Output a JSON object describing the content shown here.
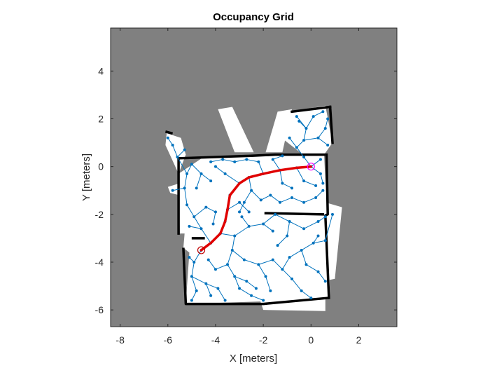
{
  "chart_data": {
    "type": "occupancy-grid",
    "title": "Occupancy Grid",
    "xlabel": "X [meters]",
    "ylabel": "Y [meters]",
    "xlim": [
      -8.4,
      3.6
    ],
    "ylim": [
      -6.7,
      5.8
    ],
    "xticks": [
      -8,
      -6,
      -4,
      -2,
      0,
      2
    ],
    "yticks": [
      -6,
      -4,
      -2,
      0,
      2,
      4
    ],
    "grid": false,
    "colors": {
      "unknown": "#808080",
      "free": "#ffffff",
      "occupied": "#000000",
      "tree": "#0072bd",
      "path": "#e00000",
      "start_marker": "#c00000",
      "goal_marker": "#ff00ff",
      "axes": "#262626"
    },
    "start": [
      -4.6,
      -3.5
    ],
    "goal": [
      0.0,
      0.0
    ],
    "path": [
      [
        -4.6,
        -3.5
      ],
      [
        -4.2,
        -3.2
      ],
      [
        -3.8,
        -2.8
      ],
      [
        -3.6,
        -2.3
      ],
      [
        -3.5,
        -1.8
      ],
      [
        -3.4,
        -1.2
      ],
      [
        -3.0,
        -0.7
      ],
      [
        -2.6,
        -0.45
      ],
      [
        -2.0,
        -0.3
      ],
      [
        -1.3,
        -0.15
      ],
      [
        -0.6,
        -0.05
      ],
      [
        0.0,
        0.0
      ]
    ],
    "free_space": [
      [
        [
          -5.55,
          -0.3
        ],
        [
          -5.5,
          -2.8
        ],
        [
          -5.3,
          -2.8
        ],
        [
          -5.35,
          -3.4
        ],
        [
          -5.1,
          -3.6
        ],
        [
          -5.25,
          -5.75
        ],
        [
          0.8,
          -5.55
        ],
        [
          0.7,
          -2.0
        ],
        [
          0.6,
          -0.6
        ],
        [
          0.55,
          0.5
        ],
        [
          -2.5,
          0.5
        ],
        [
          -4.5,
          0.4
        ]
      ],
      [
        [
          -6.05,
          1.4
        ],
        [
          -5.45,
          1.2
        ],
        [
          -5.25,
          0.5
        ],
        [
          -5.55,
          -0.3
        ],
        [
          -6.1,
          0.9
        ]
      ],
      [
        [
          -1.1,
          1.1
        ],
        [
          -0.9,
          2.3
        ],
        [
          0.6,
          2.55
        ],
        [
          0.9,
          1.0
        ],
        [
          0.55,
          0.5
        ],
        [
          -0.4,
          0.55
        ]
      ],
      [
        [
          -6.0,
          -0.85
        ],
        [
          -5.5,
          -0.7
        ],
        [
          -5.5,
          -1.2
        ],
        [
          -5.9,
          -1.1
        ]
      ],
      [
        [
          -3.9,
          2.4
        ],
        [
          -3.3,
          2.5
        ],
        [
          -2.4,
          0.6
        ],
        [
          -3.2,
          0.6
        ]
      ],
      [
        [
          -1.4,
          2.3
        ],
        [
          -0.8,
          2.4
        ],
        [
          -1.2,
          0.6
        ],
        [
          -1.9,
          0.6
        ]
      ],
      [
        [
          0.6,
          -1.5
        ],
        [
          1.3,
          -1.7
        ],
        [
          1.0,
          -4.7
        ],
        [
          0.5,
          -4.8
        ]
      ],
      [
        [
          -2.2,
          -5.4
        ],
        [
          0.6,
          -5.4
        ],
        [
          0.6,
          -6.05
        ],
        [
          -2.0,
          -6.0
        ]
      ]
    ],
    "walls": [
      [
        [
          -5.45,
          0.35
        ],
        [
          -2.5,
          0.45
        ],
        [
          -1.5,
          0.5
        ],
        [
          0.55,
          0.5
        ]
      ],
      [
        [
          -5.55,
          0.35
        ],
        [
          -5.55,
          -2.8
        ]
      ],
      [
        [
          -5.35,
          -3.45
        ],
        [
          -5.25,
          -5.75
        ],
        [
          -2.0,
          -5.75
        ],
        [
          0.7,
          -5.5
        ]
      ],
      [
        [
          0.65,
          0.5
        ],
        [
          0.7,
          -2.0
        ],
        [
          0.6,
          -2.05
        ],
        [
          0.75,
          -5.5
        ]
      ],
      [
        [
          -0.8,
          2.3
        ],
        [
          0.8,
          2.5
        ]
      ],
      [
        [
          0.8,
          2.5
        ],
        [
          0.9,
          1.0
        ]
      ],
      [
        [
          -6.05,
          1.45
        ],
        [
          -5.85,
          1.4
        ]
      ],
      [
        [
          -4.95,
          -3.0
        ],
        [
          -4.5,
          -3.0
        ]
      ],
      [
        [
          -1.9,
          -1.95
        ],
        [
          0.5,
          -2.0
        ]
      ]
    ],
    "tree_edges": [
      [
        [
          -4.6,
          -3.5
        ],
        [
          -4.2,
          -3.2
        ]
      ],
      [
        [
          -4.2,
          -3.2
        ],
        [
          -3.8,
          -2.8
        ]
      ],
      [
        [
          -3.8,
          -2.8
        ],
        [
          -3.6,
          -2.3
        ]
      ],
      [
        [
          -3.6,
          -2.3
        ],
        [
          -3.5,
          -1.8
        ]
      ],
      [
        [
          -3.5,
          -1.8
        ],
        [
          -3.4,
          -1.2
        ]
      ],
      [
        [
          -3.4,
          -1.2
        ],
        [
          -3.0,
          -0.7
        ]
      ],
      [
        [
          -3.0,
          -0.7
        ],
        [
          -2.6,
          -0.45
        ]
      ],
      [
        [
          -2.6,
          -0.45
        ],
        [
          -2.0,
          -0.3
        ]
      ],
      [
        [
          -2.0,
          -0.3
        ],
        [
          -1.3,
          -0.15
        ]
      ],
      [
        [
          -1.3,
          -0.15
        ],
        [
          -0.6,
          -0.05
        ]
      ],
      [
        [
          -0.6,
          -0.05
        ],
        [
          0.0,
          0.0
        ]
      ],
      [
        [
          -4.6,
          -3.5
        ],
        [
          -4.9,
          -4.0
        ]
      ],
      [
        [
          -4.9,
          -4.0
        ],
        [
          -5.0,
          -4.6
        ]
      ],
      [
        [
          -5.0,
          -4.6
        ],
        [
          -4.8,
          -5.2
        ]
      ],
      [
        [
          -4.9,
          -4.0
        ],
        [
          -5.1,
          -3.8
        ]
      ],
      [
        [
          -5.0,
          -4.6
        ],
        [
          -4.4,
          -4.9
        ]
      ],
      [
        [
          -4.4,
          -4.9
        ],
        [
          -4.2,
          -5.4
        ]
      ],
      [
        [
          -4.8,
          -5.2
        ],
        [
          -5.0,
          -5.6
        ]
      ],
      [
        [
          -4.4,
          -4.9
        ],
        [
          -3.9,
          -5.1
        ]
      ],
      [
        [
          -3.9,
          -5.1
        ],
        [
          -3.6,
          -5.6
        ]
      ],
      [
        [
          -4.2,
          -3.2
        ],
        [
          -4.6,
          -2.6
        ]
      ],
      [
        [
          -4.6,
          -2.6
        ],
        [
          -4.9,
          -2.1
        ]
      ],
      [
        [
          -4.9,
          -2.1
        ],
        [
          -5.2,
          -1.6
        ]
      ],
      [
        [
          -5.2,
          -1.6
        ],
        [
          -5.3,
          -0.9
        ]
      ],
      [
        [
          -5.3,
          -0.9
        ],
        [
          -5.2,
          -0.3
        ]
      ],
      [
        [
          -5.2,
          -0.3
        ],
        [
          -5.0,
          0.1
        ]
      ],
      [
        [
          -4.9,
          -2.1
        ],
        [
          -4.4,
          -1.7
        ]
      ],
      [
        [
          -4.4,
          -1.7
        ],
        [
          -4.0,
          -1.9
        ]
      ],
      [
        [
          -4.6,
          -2.6
        ],
        [
          -5.1,
          -2.5
        ]
      ],
      [
        [
          -5.3,
          -0.9
        ],
        [
          -5.8,
          -1.0
        ]
      ],
      [
        [
          -5.2,
          -0.3
        ],
        [
          -5.6,
          0.4
        ]
      ],
      [
        [
          -5.6,
          0.4
        ],
        [
          -5.8,
          0.9
        ]
      ],
      [
        [
          -5.8,
          0.9
        ],
        [
          -6.0,
          1.2
        ]
      ],
      [
        [
          -5.6,
          0.4
        ],
        [
          -5.3,
          0.7
        ]
      ],
      [
        [
          -5.0,
          0.1
        ],
        [
          -4.6,
          -0.3
        ]
      ],
      [
        [
          -4.6,
          -0.3
        ],
        [
          -4.2,
          -0.6
        ]
      ],
      [
        [
          -4.6,
          -0.3
        ],
        [
          -4.8,
          -0.9
        ]
      ],
      [
        [
          -3.8,
          -2.8
        ],
        [
          -3.2,
          -2.9
        ]
      ],
      [
        [
          -3.2,
          -2.9
        ],
        [
          -2.6,
          -2.5
        ]
      ],
      [
        [
          -2.6,
          -2.5
        ],
        [
          -2.0,
          -2.4
        ]
      ],
      [
        [
          -2.0,
          -2.4
        ],
        [
          -1.6,
          -2.7
        ]
      ],
      [
        [
          -2.6,
          -2.5
        ],
        [
          -2.9,
          -2.1
        ]
      ],
      [
        [
          -3.2,
          -2.9
        ],
        [
          -3.3,
          -3.5
        ]
      ],
      [
        [
          -3.3,
          -3.5
        ],
        [
          -3.5,
          -4.1
        ]
      ],
      [
        [
          -3.5,
          -4.1
        ],
        [
          -3.2,
          -4.6
        ]
      ],
      [
        [
          -3.2,
          -4.6
        ],
        [
          -3.0,
          -5.1
        ]
      ],
      [
        [
          -3.0,
          -5.1
        ],
        [
          -2.5,
          -5.4
        ]
      ],
      [
        [
          -3.3,
          -3.5
        ],
        [
          -2.8,
          -3.9
        ]
      ],
      [
        [
          -2.8,
          -3.9
        ],
        [
          -2.2,
          -4.1
        ]
      ],
      [
        [
          -2.2,
          -4.1
        ],
        [
          -1.9,
          -4.6
        ]
      ],
      [
        [
          -1.9,
          -4.6
        ],
        [
          -1.7,
          -5.2
        ]
      ],
      [
        [
          -2.2,
          -4.1
        ],
        [
          -1.6,
          -3.9
        ]
      ],
      [
        [
          -1.6,
          -3.9
        ],
        [
          -1.2,
          -4.3
        ]
      ],
      [
        [
          -1.2,
          -4.3
        ],
        [
          -0.8,
          -4.7
        ]
      ],
      [
        [
          -0.8,
          -4.7
        ],
        [
          -0.4,
          -5.2
        ]
      ],
      [
        [
          -0.4,
          -5.2
        ],
        [
          0.0,
          -5.5
        ]
      ],
      [
        [
          -1.2,
          -4.3
        ],
        [
          -0.9,
          -3.8
        ]
      ],
      [
        [
          -0.9,
          -3.8
        ],
        [
          -0.4,
          -3.5
        ]
      ],
      [
        [
          -0.4,
          -3.5
        ],
        [
          0.1,
          -3.2
        ]
      ],
      [
        [
          0.1,
          -3.2
        ],
        [
          0.6,
          -3.1
        ]
      ],
      [
        [
          -0.4,
          -3.5
        ],
        [
          -0.2,
          -4.1
        ]
      ],
      [
        [
          -0.2,
          -4.1
        ],
        [
          0.3,
          -4.4
        ]
      ],
      [
        [
          0.3,
          -4.4
        ],
        [
          0.6,
          -4.8
        ]
      ],
      [
        [
          -2.0,
          -2.4
        ],
        [
          -1.5,
          -2.0
        ]
      ],
      [
        [
          -1.5,
          -2.0
        ],
        [
          -0.9,
          -2.3
        ]
      ],
      [
        [
          -0.9,
          -2.3
        ],
        [
          -0.3,
          -2.6
        ]
      ],
      [
        [
          -0.3,
          -2.6
        ],
        [
          0.3,
          -2.3
        ]
      ],
      [
        [
          0.3,
          -2.3
        ],
        [
          0.6,
          -2.1
        ]
      ],
      [
        [
          -0.9,
          -2.3
        ],
        [
          -1.0,
          -2.9
        ]
      ],
      [
        [
          -1.0,
          -2.9
        ],
        [
          -1.4,
          -3.3
        ]
      ],
      [
        [
          -2.6,
          -0.45
        ],
        [
          -2.5,
          -1.0
        ]
      ],
      [
        [
          -2.5,
          -1.0
        ],
        [
          -2.8,
          -1.5
        ]
      ],
      [
        [
          -2.8,
          -1.5
        ],
        [
          -3.0,
          -1.9
        ]
      ],
      [
        [
          -2.5,
          -1.0
        ],
        [
          -2.1,
          -1.4
        ]
      ],
      [
        [
          -2.1,
          -1.4
        ],
        [
          -1.7,
          -1.2
        ]
      ],
      [
        [
          -1.7,
          -1.2
        ],
        [
          -1.3,
          -1.5
        ]
      ],
      [
        [
          -1.3,
          -1.5
        ],
        [
          -0.8,
          -1.3
        ]
      ],
      [
        [
          -0.8,
          -1.3
        ],
        [
          -0.3,
          -1.5
        ]
      ],
      [
        [
          -0.3,
          -1.5
        ],
        [
          0.2,
          -1.3
        ]
      ],
      [
        [
          0.2,
          -1.3
        ],
        [
          0.5,
          -1.0
        ]
      ],
      [
        [
          -1.3,
          -0.15
        ],
        [
          -1.2,
          -0.7
        ]
      ],
      [
        [
          -1.2,
          -0.7
        ],
        [
          -0.8,
          -0.9
        ]
      ],
      [
        [
          -0.6,
          -0.05
        ],
        [
          -0.3,
          -0.6
        ]
      ],
      [
        [
          -0.3,
          -0.6
        ],
        [
          0.2,
          -0.8
        ]
      ],
      [
        [
          -2.0,
          -0.3
        ],
        [
          -2.2,
          0.2
        ]
      ],
      [
        [
          -2.2,
          0.2
        ],
        [
          -2.7,
          0.3
        ]
      ],
      [
        [
          -2.7,
          0.3
        ],
        [
          -3.2,
          0.2
        ]
      ],
      [
        [
          -3.2,
          0.2
        ],
        [
          -3.7,
          0.3
        ]
      ],
      [
        [
          -3.7,
          0.3
        ],
        [
          -4.2,
          0.2
        ]
      ],
      [
        [
          -3.0,
          -0.7
        ],
        [
          -3.6,
          -0.3
        ]
      ],
      [
        [
          -3.6,
          -0.3
        ],
        [
          -4.0,
          0.0
        ]
      ],
      [
        [
          -1.3,
          -0.15
        ],
        [
          -1.6,
          0.3
        ]
      ],
      [
        [
          -1.6,
          0.3
        ],
        [
          -1.2,
          0.45
        ]
      ],
      [
        [
          0.0,
          0.0
        ],
        [
          0.4,
          0.3
        ]
      ],
      [
        [
          0.0,
          0.0
        ],
        [
          -0.3,
          0.4
        ]
      ],
      [
        [
          -0.3,
          0.4
        ],
        [
          -0.6,
          0.8
        ]
      ],
      [
        [
          -0.6,
          0.8
        ],
        [
          -0.9,
          1.2
        ]
      ],
      [
        [
          -0.6,
          0.8
        ],
        [
          -0.3,
          1.1
        ]
      ],
      [
        [
          -0.3,
          1.1
        ],
        [
          -0.2,
          1.6
        ]
      ],
      [
        [
          -0.2,
          1.6
        ],
        [
          -0.5,
          1.9
        ]
      ],
      [
        [
          -0.2,
          1.6
        ],
        [
          0.1,
          2.1
        ]
      ],
      [
        [
          0.1,
          2.1
        ],
        [
          0.5,
          2.3
        ]
      ],
      [
        [
          -0.3,
          1.1
        ],
        [
          0.3,
          1.2
        ]
      ],
      [
        [
          0.3,
          1.2
        ],
        [
          0.6,
          1.6
        ]
      ],
      [
        [
          0.6,
          1.6
        ],
        [
          0.7,
          2.0
        ]
      ],
      [
        [
          0.3,
          1.2
        ],
        [
          0.7,
          0.9
        ]
      ],
      [
        [
          -0.2,
          1.6
        ],
        [
          -0.6,
          2.1
        ]
      ],
      [
        [
          0.0,
          0.0
        ],
        [
          0.4,
          -0.3
        ]
      ],
      [
        [
          0.4,
          -0.3
        ],
        [
          0.5,
          -0.7
        ]
      ],
      [
        [
          0.1,
          -3.2
        ],
        [
          0.3,
          -2.9
        ]
      ],
      [
        [
          0.6,
          -3.1
        ],
        [
          0.9,
          -2.0
        ]
      ],
      [
        [
          -3.5,
          -1.8
        ],
        [
          -3.0,
          -1.5
        ]
      ],
      [
        [
          -3.0,
          -1.5
        ],
        [
          -2.6,
          -1.9
        ]
      ],
      [
        [
          -4.0,
          -1.9
        ],
        [
          -4.1,
          -2.4
        ]
      ],
      [
        [
          -3.2,
          -4.6
        ],
        [
          -2.7,
          -4.8
        ]
      ],
      [
        [
          -2.7,
          -4.8
        ],
        [
          -2.3,
          -5.1
        ]
      ],
      [
        [
          -2.5,
          -5.4
        ],
        [
          -2.0,
          -5.6
        ]
      ],
      [
        [
          -3.5,
          -4.1
        ],
        [
          -4.0,
          -4.3
        ]
      ],
      [
        [
          -4.0,
          -4.3
        ],
        [
          -4.3,
          -3.9
        ]
      ]
    ]
  }
}
